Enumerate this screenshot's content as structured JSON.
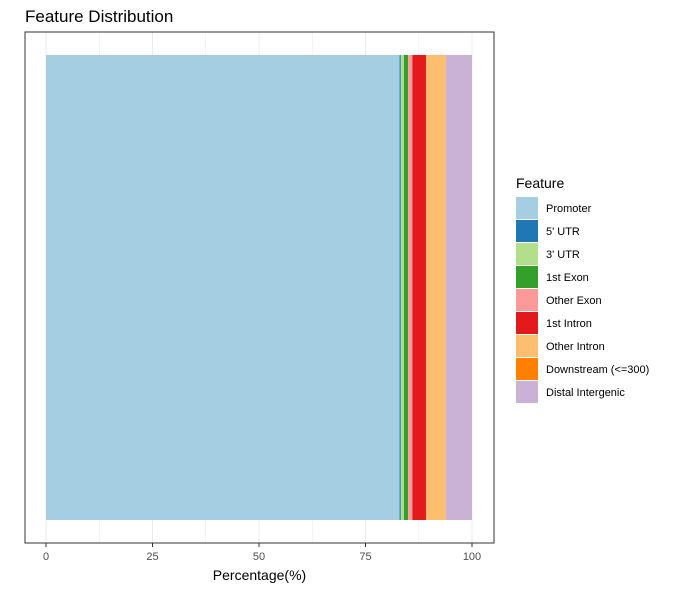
{
  "chart_data": {
    "type": "bar",
    "orientation": "horizontal",
    "stacked": true,
    "title": "Feature Distribution",
    "xlabel": "Percentage(%)",
    "ylabel": "",
    "xlim": [
      0,
      100
    ],
    "x_ticks": [
      "0",
      "25",
      "50",
      "75",
      "100"
    ],
    "grid": true,
    "legend": {
      "title": "Feature",
      "placement": "right"
    },
    "series": [
      {
        "name": "Promoter",
        "value": 83.0,
        "color": "#A6CEE3"
      },
      {
        "name": "5' UTR",
        "value": 0.3,
        "color": "#1F78B4"
      },
      {
        "name": "3' UTR",
        "value": 0.7,
        "color": "#B2DF8A"
      },
      {
        "name": "1st Exon",
        "value": 1.0,
        "color": "#33A02C"
      },
      {
        "name": "Other Exon",
        "value": 1.0,
        "color": "#FB9A99"
      },
      {
        "name": "1st Intron",
        "value": 3.2,
        "color": "#E31A1C"
      },
      {
        "name": "Other Intron",
        "value": 4.6,
        "color": "#FDBF6F"
      },
      {
        "name": "Downstream (<=300)",
        "value": 0.05,
        "color": "#FF7F00"
      },
      {
        "name": "Distal Intergenic",
        "value": 6.15,
        "color": "#CAB2D6"
      }
    ]
  }
}
